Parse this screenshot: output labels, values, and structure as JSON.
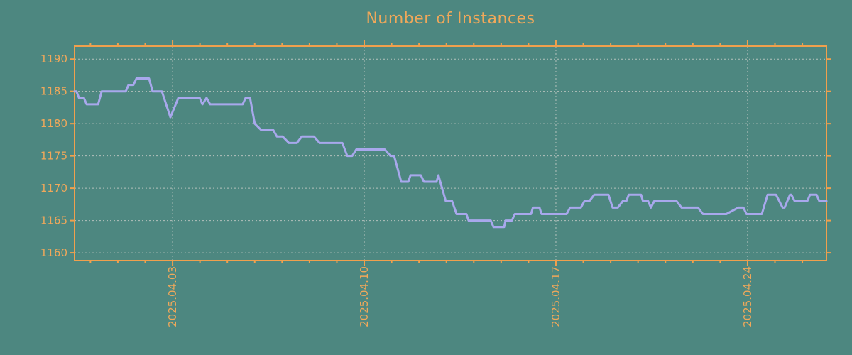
{
  "title": "Number of Instances",
  "colors": {
    "background": "#4d8780",
    "axis": "#f0a04d",
    "text": "#f0a85a",
    "line": "#a8a8ec",
    "grid": "#c8cdc8"
  },
  "chart_data": {
    "type": "line",
    "title": "Number of Instances",
    "xlabel": "",
    "ylabel": "",
    "legend": "none",
    "grid": "dashed, at major ticks only",
    "x_axis": {
      "unit": "days relative to 2025-04-03",
      "range": [
        -3.58,
        23.88
      ],
      "major_ticks": [
        0,
        7,
        14,
        21
      ],
      "major_tick_labels": [
        "2025.04.03",
        "2025.04.10",
        "2025.04.17",
        "2025.04.24"
      ],
      "minor_tick_interval_days": 1,
      "tick_label_rotation_deg": 90
    },
    "y_axis": {
      "range": [
        1158.8,
        1192.0
      ],
      "ticks": [
        1160,
        1165,
        1170,
        1175,
        1180,
        1185,
        1190
      ]
    },
    "points": [
      [
        -3.58,
        1185
      ],
      [
        -3.51,
        1185
      ],
      [
        -3.42,
        1184
      ],
      [
        -3.24,
        1184
      ],
      [
        -3.14,
        1183
      ],
      [
        -2.72,
        1183
      ],
      [
        -2.59,
        1185
      ],
      [
        -1.71,
        1185
      ],
      [
        -1.61,
        1186
      ],
      [
        -1.43,
        1186
      ],
      [
        -1.32,
        1187
      ],
      [
        -0.86,
        1187
      ],
      [
        -0.73,
        1185
      ],
      [
        -0.39,
        1185
      ],
      [
        -0.08,
        1181
      ],
      [
        0.21,
        1184
      ],
      [
        0.99,
        1184
      ],
      [
        1.09,
        1183
      ],
      [
        1.24,
        1184
      ],
      [
        1.37,
        1183
      ],
      [
        2.56,
        1183
      ],
      [
        2.67,
        1184
      ],
      [
        2.83,
        1184
      ],
      [
        3.0,
        1180
      ],
      [
        3.24,
        1179
      ],
      [
        3.68,
        1179
      ],
      [
        3.81,
        1178
      ],
      [
        4.02,
        1178
      ],
      [
        4.25,
        1177
      ],
      [
        4.54,
        1177
      ],
      [
        4.72,
        1178
      ],
      [
        5.16,
        1178
      ],
      [
        5.37,
        1177
      ],
      [
        6.2,
        1177
      ],
      [
        6.38,
        1175
      ],
      [
        6.56,
        1175
      ],
      [
        6.71,
        1176
      ],
      [
        7.75,
        1176
      ],
      [
        7.96,
        1175
      ],
      [
        8.09,
        1175
      ],
      [
        8.35,
        1171
      ],
      [
        8.61,
        1171
      ],
      [
        8.69,
        1172
      ],
      [
        9.07,
        1172
      ],
      [
        9.18,
        1171
      ],
      [
        9.64,
        1171
      ],
      [
        9.71,
        1172
      ],
      [
        9.98,
        1168
      ],
      [
        10.21,
        1168
      ],
      [
        10.37,
        1166
      ],
      [
        10.73,
        1166
      ],
      [
        10.81,
        1165
      ],
      [
        11.62,
        1165
      ],
      [
        11.72,
        1164
      ],
      [
        12.11,
        1164
      ],
      [
        12.16,
        1165
      ],
      [
        12.39,
        1165
      ],
      [
        12.5,
        1166
      ],
      [
        13.09,
        1166
      ],
      [
        13.16,
        1167
      ],
      [
        13.4,
        1167
      ],
      [
        13.48,
        1166
      ],
      [
        14.39,
        1166
      ],
      [
        14.52,
        1167
      ],
      [
        14.91,
        1167
      ],
      [
        15.04,
        1168
      ],
      [
        15.22,
        1168
      ],
      [
        15.4,
        1169
      ],
      [
        15.92,
        1169
      ],
      [
        16.07,
        1167
      ],
      [
        16.26,
        1167
      ],
      [
        16.44,
        1168
      ],
      [
        16.57,
        1168
      ],
      [
        16.66,
        1169
      ],
      [
        17.11,
        1169
      ],
      [
        17.18,
        1168
      ],
      [
        17.37,
        1168
      ],
      [
        17.47,
        1167
      ],
      [
        17.59,
        1168
      ],
      [
        18.41,
        1168
      ],
      [
        18.59,
        1167
      ],
      [
        19.19,
        1167
      ],
      [
        19.37,
        1166
      ],
      [
        20.22,
        1166
      ],
      [
        20.66,
        1167
      ],
      [
        20.85,
        1167
      ],
      [
        20.96,
        1166
      ],
      [
        21.52,
        1166
      ],
      [
        21.73,
        1169
      ],
      [
        22.04,
        1169
      ],
      [
        22.28,
        1167
      ],
      [
        22.35,
        1167
      ],
      [
        22.55,
        1169
      ],
      [
        22.6,
        1169
      ],
      [
        22.72,
        1168
      ],
      [
        23.18,
        1168
      ],
      [
        23.28,
        1169
      ],
      [
        23.52,
        1169
      ],
      [
        23.62,
        1168
      ],
      [
        23.88,
        1168
      ]
    ]
  }
}
